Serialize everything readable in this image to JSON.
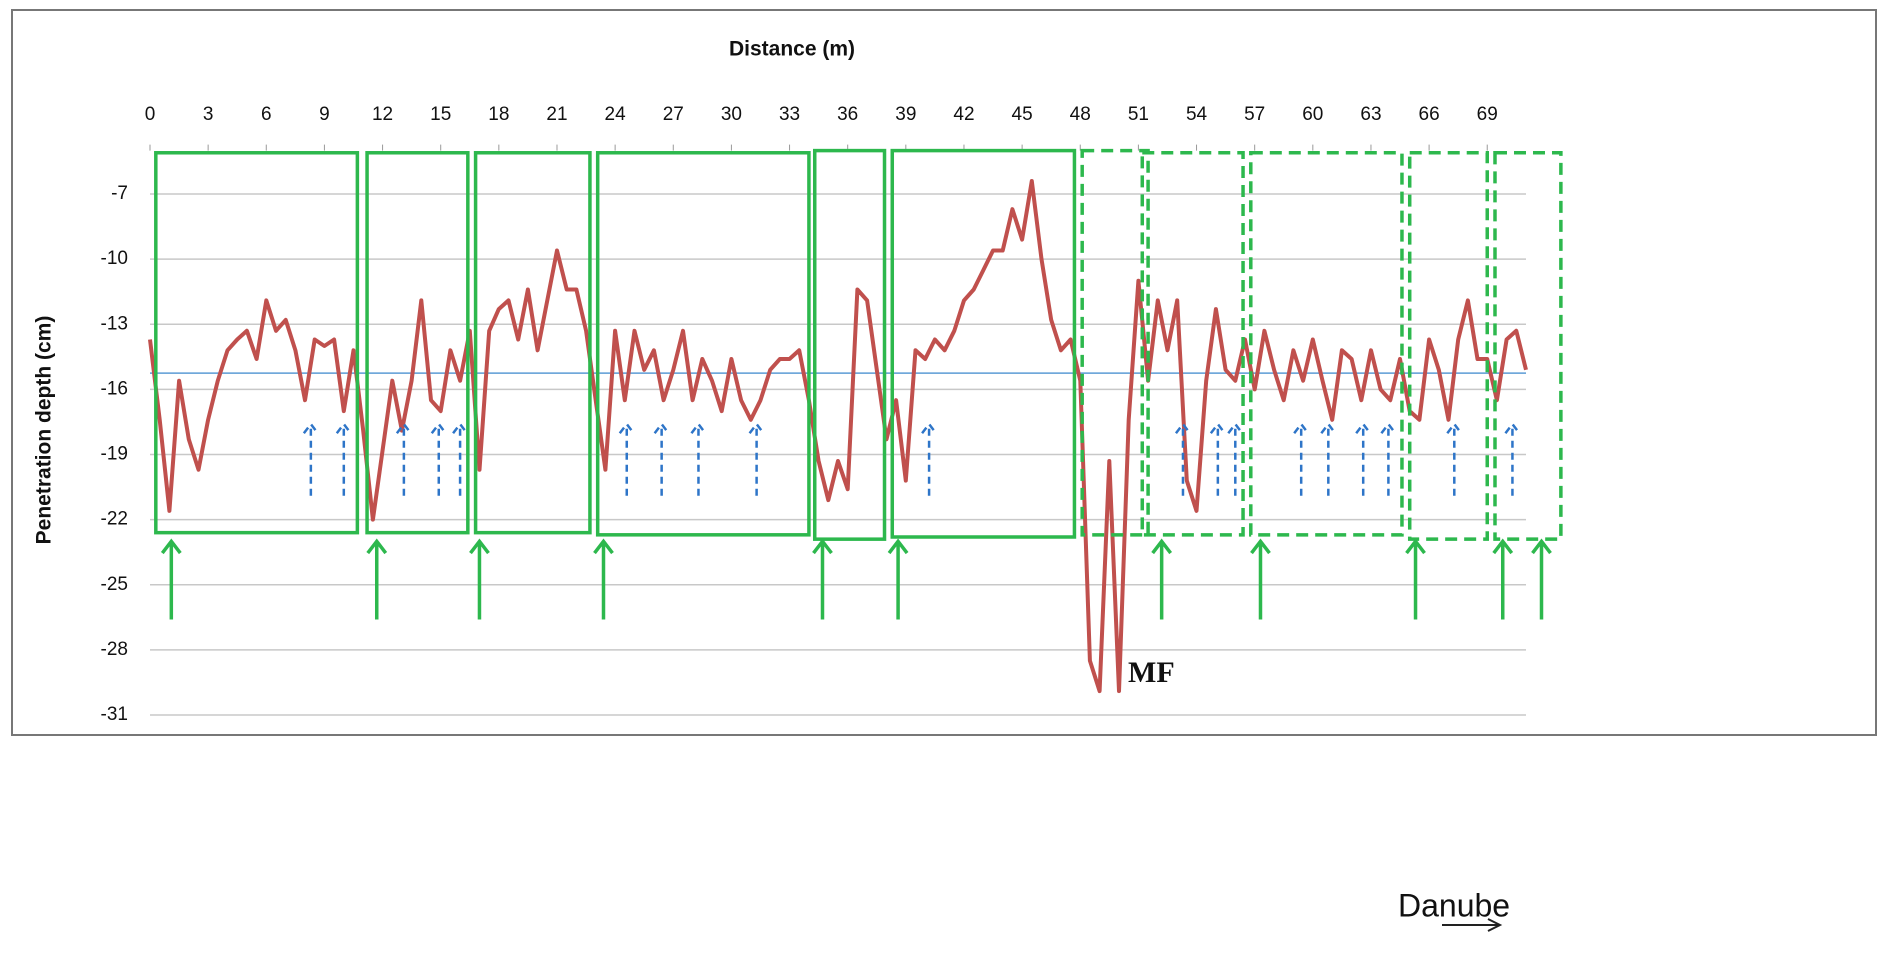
{
  "chart_data": {
    "type": "line",
    "title": "Distance (m)",
    "y_label": "Penetration depth (cm)",
    "annotation": "MF",
    "flow_label": "Danube",
    "x": [
      0,
      0.5,
      1,
      1.5,
      2,
      2.5,
      3,
      3.5,
      4,
      4.5,
      5,
      5.5,
      6,
      6.5,
      7,
      7.5,
      8,
      8.5,
      9,
      9.5,
      10,
      10.5,
      11,
      11.5,
      12,
      12.5,
      13,
      13.5,
      14,
      14.5,
      15,
      15.5,
      16,
      16.5,
      17,
      17.5,
      18,
      18.5,
      19,
      19.5,
      20,
      20.5,
      21,
      21.5,
      22,
      22.5,
      23,
      23.5,
      24,
      24.5,
      25,
      25.5,
      26,
      26.5,
      27,
      27.5,
      28,
      28.5,
      29,
      29.5,
      30,
      30.5,
      31,
      31.5,
      32,
      32.5,
      33,
      33.5,
      34,
      34.5,
      35,
      35.5,
      36,
      36.5,
      37,
      37.5,
      38,
      38.5,
      39,
      39.5,
      40,
      40.5,
      41,
      41.5,
      42,
      42.5,
      43,
      43.5,
      44,
      44.5,
      45,
      45.5,
      46,
      46.5,
      47,
      47.5,
      48,
      48.5,
      49,
      49.5,
      50,
      50.5,
      51,
      51.5,
      52,
      52.5,
      53,
      53.5,
      54,
      54.5,
      55,
      55.5,
      56,
      56.5,
      57,
      57.5,
      58,
      58.5,
      59,
      59.5,
      60,
      60.5,
      61,
      61.5,
      62,
      62.5,
      63,
      63.5,
      64,
      64.5,
      65,
      65.5,
      66,
      66.5,
      67,
      67.5,
      68,
      68.5,
      69,
      69.5,
      70,
      70.5,
      71
    ],
    "series": [
      {
        "color": "#c0504d",
        "values": [
          -13.7,
          -17.4,
          -21.6,
          -15.6,
          -18.3,
          -19.7,
          -17.4,
          -15.6,
          -14.2,
          -13.7,
          -13.3,
          -14.6,
          -11.9,
          -13.3,
          -12.8,
          -14.2,
          -16.5,
          -13.7,
          -14.0,
          -13.7,
          -17,
          -14.2,
          -17.9,
          -22,
          -18.8,
          -15.6,
          -17.9,
          -15.6,
          -11.9,
          -16.5,
          -17,
          -14.2,
          -15.6,
          -13.3,
          -19.7,
          -13.3,
          -12.3,
          -11.9,
          -13.7,
          -11.4,
          -14.2,
          -11.9,
          -9.6,
          -11.4,
          -11.4,
          -13.3,
          -16.5,
          -19.7,
          -13.3,
          -16.5,
          -13.3,
          -15.1,
          -14.2,
          -16.5,
          -15.1,
          -13.3,
          -16.5,
          -14.6,
          -15.6,
          -17,
          -14.6,
          -16.5,
          -17.4,
          -16.5,
          -15.1,
          -14.6,
          -14.6,
          -14.2,
          -16.5,
          -19.3,
          -21.1,
          -19.3,
          -20.6,
          -11.4,
          -11.9,
          -15.1,
          -18.3,
          -16.5,
          -20.2,
          -14.2,
          -14.6,
          -13.7,
          -14.2,
          -13.3,
          -11.9,
          -11.4,
          -10.5,
          -9.6,
          -9.6,
          -7.7,
          -9.1,
          -6.4,
          -10,
          -12.8,
          -14.2,
          -13.7,
          -15.6,
          -28.5,
          -29.9,
          -19.3,
          -29.9,
          -17.4,
          -11,
          -15.6,
          -11.9,
          -14.2,
          -11.9,
          -20.2,
          -21.6,
          -15.6,
          -12.3,
          -15.1,
          -15.6,
          -13.7,
          -16,
          -13.3,
          -15.1,
          -16.5,
          -14.2,
          -15.6,
          -13.7,
          -15.6,
          -17.4,
          -14.2,
          -14.6,
          -16.5,
          -14.2,
          -16,
          -16.5,
          -14.6,
          -17,
          -17.4,
          -13.7,
          -15.1,
          -17.4,
          -13.7,
          -11.9,
          -14.6,
          -14.6,
          -16.5,
          -13.7,
          -13.3,
          -15.1
        ]
      }
    ],
    "reference_line": {
      "value": -15.25,
      "color": "#5b9bd5"
    },
    "xlim": [
      0,
      71
    ],
    "xticks": [
      0,
      3,
      6,
      9,
      12,
      15,
      18,
      21,
      24,
      27,
      30,
      33,
      36,
      39,
      42,
      45,
      48,
      51,
      54,
      57,
      60,
      63,
      66,
      69
    ],
    "ylim": [
      -31,
      -5
    ],
    "yticks": [
      -7,
      -10,
      -13,
      -16,
      -19,
      -22,
      -25,
      -28,
      -31
    ],
    "grid": true,
    "boxes": {
      "color": "#2db84d",
      "items": [
        {
          "x": [
            0.3,
            10.7
          ],
          "y": [
            -22.6,
            -5.1
          ],
          "dashed": false
        },
        {
          "x": [
            11.2,
            16.4
          ],
          "y": [
            -22.6,
            -5.1
          ],
          "dashed": false
        },
        {
          "x": [
            16.8,
            22.7
          ],
          "y": [
            -22.6,
            -5.1
          ],
          "dashed": false
        },
        {
          "x": [
            23.1,
            34.0
          ],
          "y": [
            -22.7,
            -5.1
          ],
          "dashed": false
        },
        {
          "x": [
            34.3,
            37.9
          ],
          "y": [
            -22.9,
            -5.0
          ],
          "dashed": false
        },
        {
          "x": [
            38.3,
            47.7
          ],
          "y": [
            -22.8,
            -5.0
          ],
          "dashed": false
        },
        {
          "x": [
            48.1,
            51.5
          ],
          "y": [
            -22.7,
            -5.0
          ],
          "dashed": true
        },
        {
          "x": [
            51.2,
            56.4
          ],
          "y": [
            -22.7,
            -5.1
          ],
          "dashed": true
        },
        {
          "x": [
            56.8,
            64.6
          ],
          "y": [
            -22.7,
            -5.1
          ],
          "dashed": true
        },
        {
          "x": [
            65.0,
            69.0
          ],
          "y": [
            -22.9,
            -5.1
          ],
          "dashed": true
        },
        {
          "x": [
            69.4,
            72.8
          ],
          "y": [
            -22.9,
            -5.1
          ],
          "dashed": true
        }
      ]
    },
    "green_arrows": {
      "color": "#2db84d",
      "x": [
        1.1,
        11.7,
        17,
        23.4,
        34.7,
        38.6,
        52.2,
        57.3,
        65.3,
        69.8,
        71.8
      ],
      "from": -26.6,
      "to": -23.0
    },
    "blue_arrows": {
      "color": "#2e75c8",
      "x": [
        8.3,
        10,
        13.1,
        14.9,
        16,
        24.6,
        26.4,
        28.3,
        31.3,
        40.2,
        53.3,
        55.1,
        56,
        59.4,
        60.8,
        62.6,
        63.9,
        67.3,
        70.3
      ],
      "from": -20.9,
      "to": -17.6
    }
  }
}
